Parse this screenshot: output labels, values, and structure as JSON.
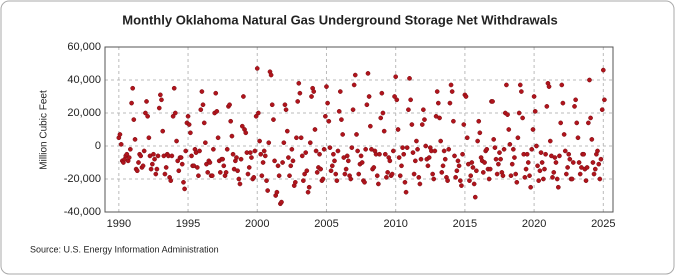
{
  "chart_data": {
    "type": "scatter",
    "title": "Monthly Oklahoma Natural Gas Underground Storage Net Withdrawals",
    "y_label": "Million Cubic Feet",
    "source": "Source: U.S. Energy Information Administration",
    "color": "#b0141c",
    "grid": true,
    "xlim": [
      1989,
      2025.7
    ],
    "xticks": [
      1990,
      1995,
      2000,
      2005,
      2010,
      2015,
      2020,
      2025
    ],
    "ylim": [
      -40000,
      60000
    ],
    "yticks": [
      {
        "value": -40000,
        "label": "-40,000"
      },
      {
        "value": -20000,
        "label": "-20,000"
      },
      {
        "value": 0,
        "label": "0"
      },
      {
        "value": 20000,
        "label": "20,000"
      },
      {
        "value": 40000,
        "label": "40,000"
      },
      {
        "value": 60000,
        "label": "60,000"
      }
    ],
    "x": [
      1990,
      1990.08,
      1990.17,
      1990.25,
      1990.33,
      1990.42,
      1990.5,
      1990.58,
      1990.67,
      1990.75,
      1990.83,
      1990.92,
      1991,
      1991.08,
      1991.17,
      1991.25,
      1991.33,
      1991.42,
      1991.5,
      1991.58,
      1991.67,
      1991.75,
      1991.83,
      1991.92,
      1992,
      1992.08,
      1992.17,
      1992.25,
      1992.33,
      1992.42,
      1992.5,
      1992.58,
      1992.67,
      1992.75,
      1992.83,
      1992.92,
      1993,
      1993.08,
      1993.17,
      1993.25,
      1993.33,
      1993.42,
      1993.5,
      1993.58,
      1993.67,
      1993.75,
      1993.83,
      1993.92,
      1994,
      1994.08,
      1994.17,
      1994.25,
      1994.33,
      1994.42,
      1994.5,
      1994.58,
      1994.67,
      1994.75,
      1994.83,
      1994.92,
      1995,
      1995.08,
      1995.17,
      1995.25,
      1995.33,
      1995.42,
      1995.5,
      1995.58,
      1995.67,
      1995.75,
      1995.83,
      1995.92,
      1996,
      1996.08,
      1996.17,
      1996.25,
      1996.33,
      1996.42,
      1996.5,
      1996.58,
      1996.67,
      1996.75,
      1996.83,
      1996.92,
      1997,
      1997.08,
      1997.17,
      1997.25,
      1997.33,
      1997.42,
      1997.5,
      1997.58,
      1997.67,
      1997.75,
      1997.83,
      1997.92,
      1998,
      1998.08,
      1998.17,
      1998.25,
      1998.33,
      1998.42,
      1998.5,
      1998.58,
      1998.67,
      1998.75,
      1998.83,
      1998.92,
      1999,
      1999.08,
      1999.17,
      1999.25,
      1999.33,
      1999.42,
      1999.5,
      1999.58,
      1999.67,
      1999.75,
      1999.83,
      1999.92,
      2000,
      2000.08,
      2000.17,
      2000.25,
      2000.33,
      2000.42,
      2000.5,
      2000.58,
      2000.67,
      2000.75,
      2000.83,
      2000.92,
      2001,
      2001.08,
      2001.17,
      2001.25,
      2001.33,
      2001.42,
      2001.5,
      2001.58,
      2001.67,
      2001.75,
      2001.83,
      2001.92,
      2002,
      2002.08,
      2002.17,
      2002.25,
      2002.33,
      2002.42,
      2002.5,
      2002.58,
      2002.67,
      2002.75,
      2002.83,
      2002.92,
      2003,
      2003.08,
      2003.17,
      2003.25,
      2003.33,
      2003.42,
      2003.5,
      2003.58,
      2003.67,
      2003.75,
      2003.83,
      2003.92,
      2004,
      2004.08,
      2004.17,
      2004.25,
      2004.33,
      2004.42,
      2004.5,
      2004.58,
      2004.67,
      2004.75,
      2004.83,
      2004.92,
      2005,
      2005.08,
      2005.17,
      2005.25,
      2005.33,
      2005.42,
      2005.5,
      2005.58,
      2005.67,
      2005.75,
      2005.83,
      2005.92,
      2006,
      2006.08,
      2006.17,
      2006.25,
      2006.33,
      2006.42,
      2006.5,
      2006.58,
      2006.67,
      2006.75,
      2006.83,
      2006.92,
      2007,
      2007.08,
      2007.17,
      2007.25,
      2007.33,
      2007.42,
      2007.5,
      2007.58,
      2007.67,
      2007.75,
      2007.83,
      2007.92,
      2008,
      2008.08,
      2008.17,
      2008.25,
      2008.33,
      2008.42,
      2008.5,
      2008.58,
      2008.67,
      2008.75,
      2008.83,
      2008.92,
      2009,
      2009.08,
      2009.17,
      2009.25,
      2009.33,
      2009.42,
      2009.5,
      2009.58,
      2009.67,
      2009.75,
      2009.83,
      2009.92,
      2010,
      2010.08,
      2010.17,
      2010.25,
      2010.33,
      2010.42,
      2010.5,
      2010.58,
      2010.67,
      2010.75,
      2010.83,
      2010.92,
      2011,
      2011.08,
      2011.17,
      2011.25,
      2011.33,
      2011.42,
      2011.5,
      2011.58,
      2011.67,
      2011.75,
      2011.83,
      2011.92,
      2012,
      2012.08,
      2012.17,
      2012.25,
      2012.33,
      2012.42,
      2012.5,
      2012.58,
      2012.67,
      2012.75,
      2012.83,
      2012.92,
      2013,
      2013.08,
      2013.17,
      2013.25,
      2013.33,
      2013.42,
      2013.5,
      2013.58,
      2013.67,
      2013.75,
      2013.83,
      2013.92,
      2014,
      2014.08,
      2014.17,
      2014.25,
      2014.33,
      2014.42,
      2014.5,
      2014.58,
      2014.67,
      2014.75,
      2014.83,
      2014.92,
      2015,
      2015.08,
      2015.17,
      2015.25,
      2015.33,
      2015.42,
      2015.5,
      2015.58,
      2015.67,
      2015.75,
      2015.83,
      2015.92,
      2016,
      2016.08,
      2016.17,
      2016.25,
      2016.33,
      2016.42,
      2016.5,
      2016.58,
      2016.67,
      2016.75,
      2016.83,
      2016.92,
      2017,
      2017.08,
      2017.17,
      2017.25,
      2017.33,
      2017.42,
      2017.5,
      2017.58,
      2017.67,
      2017.75,
      2017.83,
      2017.92,
      2018,
      2018.08,
      2018.17,
      2018.25,
      2018.33,
      2018.42,
      2018.5,
      2018.58,
      2018.67,
      2018.75,
      2018.83,
      2018.92,
      2019,
      2019.08,
      2019.17,
      2019.25,
      2019.33,
      2019.42,
      2019.5,
      2019.58,
      2019.67,
      2019.75,
      2019.83,
      2019.92,
      2020,
      2020.08,
      2020.17,
      2020.25,
      2020.33,
      2020.42,
      2020.5,
      2020.58,
      2020.67,
      2020.75,
      2020.83,
      2020.92,
      2021,
      2021.08,
      2021.17,
      2021.25,
      2021.33,
      2021.42,
      2021.5,
      2021.58,
      2021.67,
      2021.75,
      2021.83,
      2021.92,
      2022,
      2022.08,
      2022.17,
      2022.25,
      2022.33,
      2022.42,
      2022.5,
      2022.58,
      2022.67,
      2022.75,
      2022.83,
      2022.92,
      2023,
      2023.08,
      2023.17,
      2023.25,
      2023.33,
      2023.42,
      2023.5,
      2023.58,
      2023.67,
      2023.75,
      2023.83,
      2023.92,
      2024,
      2024.08,
      2024.17,
      2024.25,
      2024.33,
      2024.42,
      2024.5,
      2024.58,
      2024.67,
      2024.75,
      2024.83,
      2024.92,
      2025,
      2025.08
    ],
    "values": [
      5000,
      7000,
      1000,
      -9000,
      -10000,
      -8000,
      -6000,
      -5000,
      -9000,
      -7000,
      -2000,
      26000,
      35000,
      16000,
      4000,
      -14000,
      -15000,
      -10000,
      -5000,
      -6000,
      -13000,
      -12000,
      -3000,
      20000,
      27000,
      18000,
      5000,
      -6000,
      -14000,
      -11000,
      -5000,
      -8000,
      -17000,
      -14000,
      -6000,
      23000,
      31000,
      28000,
      9000,
      -6000,
      -17000,
      -13000,
      -5000,
      -6000,
      -19000,
      -21000,
      -6000,
      18000,
      35000,
      20000,
      3000,
      -9000,
      -15000,
      -7000,
      -7000,
      -11000,
      -22000,
      -26000,
      -3000,
      14000,
      18000,
      13000,
      8000,
      -6000,
      -12000,
      -12000,
      -2000,
      -4000,
      -13000,
      -18000,
      -3000,
      22000,
      33000,
      25000,
      14000,
      2000,
      -11000,
      -16000,
      -9000,
      -10000,
      -18000,
      -18000,
      -2000,
      20000,
      32000,
      21000,
      5000,
      -9000,
      -16000,
      -8000,
      -8000,
      -12000,
      -18000,
      -16000,
      -2000,
      24000,
      25000,
      15000,
      6000,
      -5000,
      -14000,
      -9000,
      -7000,
      -15000,
      -20000,
      -23000,
      -8000,
      12000,
      30000,
      10000,
      8000,
      -4000,
      -17000,
      -13000,
      -4000,
      -7000,
      -20000,
      -19000,
      -3000,
      18000,
      47000,
      20000,
      3000,
      -5000,
      -18000,
      -10000,
      -3000,
      -6000,
      -21000,
      -27000,
      2000,
      45000,
      43000,
      25000,
      16000,
      -9000,
      -30000,
      -28000,
      -12000,
      -18000,
      -35000,
      -34000,
      -10000,
      2000,
      25000,
      22000,
      9000,
      -7000,
      -18000,
      -12000,
      -2000,
      -9000,
      -24000,
      -22000,
      5000,
      27000,
      38000,
      32000,
      5000,
      -6000,
      -21000,
      -17000,
      -4000,
      -15000,
      -28000,
      -25000,
      2000,
      30000,
      35000,
      33000,
      10000,
      -3000,
      -16000,
      -13000,
      -5000,
      -14000,
      -21000,
      -20000,
      -2000,
      18000,
      36000,
      26000,
      15000,
      -1000,
      -15000,
      -12000,
      -5000,
      -9000,
      -17000,
      -21000,
      -3000,
      21000,
      33000,
      16000,
      7000,
      -7000,
      -17000,
      -14000,
      -6000,
      -9000,
      -18000,
      -20000,
      -1000,
      22000,
      37000,
      43000,
      7000,
      -3000,
      -17000,
      -11000,
      -6000,
      -10000,
      -21000,
      -22000,
      -2000,
      25000,
      44000,
      30000,
      12000,
      -2000,
      -14000,
      -13000,
      -3000,
      -5000,
      -18000,
      -23000,
      -5000,
      17000,
      32000,
      20000,
      9000,
      -5000,
      -19000,
      -16000,
      -7000,
      -9000,
      -18000,
      -17000,
      -3000,
      30000,
      42000,
      28000,
      10000,
      -7000,
      -18000,
      -12000,
      -1000,
      -5000,
      -22000,
      -28000,
      -1000,
      22000,
      41000,
      28000,
      13000,
      -4000,
      -17000,
      -9000,
      3000,
      -2000,
      -19000,
      -23000,
      -8000,
      13000,
      22000,
      16000,
      0,
      -8000,
      -12000,
      -7000,
      -1000,
      -3000,
      -17000,
      -20000,
      -3000,
      18000,
      33000,
      26000,
      17000,
      3000,
      -16000,
      -12000,
      -3000,
      -8000,
      -19000,
      -21000,
      -2000,
      26000,
      37000,
      33000,
      15000,
      -6000,
      -19000,
      -15000,
      -9000,
      -12000,
      -21000,
      -24000,
      -5000,
      13000,
      31000,
      30000,
      5000,
      -11000,
      -21000,
      -18000,
      -10000,
      -13000,
      -23000,
      -31000,
      -15000,
      3000,
      15000,
      8000,
      -7000,
      -9000,
      -16000,
      -10000,
      -3000,
      -2000,
      -14000,
      -20000,
      -14000,
      27000,
      27000,
      4000,
      -1000,
      -8000,
      -17000,
      -11000,
      -4000,
      -8000,
      -16000,
      -18000,
      -2000,
      20000,
      37000,
      19000,
      10000,
      1000,
      -18000,
      -11000,
      -2000,
      -7000,
      -17000,
      -22000,
      5000,
      20000,
      37000,
      33000,
      17000,
      -5000,
      -19000,
      -14000,
      -5000,
      -10000,
      -18000,
      -25000,
      -2000,
      10000,
      30000,
      21000,
      0,
      -12000,
      -21000,
      -15000,
      -4000,
      -10000,
      -20000,
      -14000,
      -5000,
      24000,
      38000,
      36000,
      3000,
      -6000,
      -19000,
      -16000,
      -7000,
      -10000,
      -20000,
      -25000,
      -6000,
      14000,
      37000,
      26000,
      7000,
      -3000,
      -17000,
      -13000,
      -5000,
      -8000,
      -20000,
      -20000,
      -10000,
      24000,
      28000,
      14000,
      5000,
      -10000,
      -17000,
      -13000,
      -5000,
      -5000,
      -14000,
      -21000,
      -13000,
      14000,
      40000,
      17000,
      4000,
      -10000,
      -17000,
      -14000,
      -5000,
      -3000,
      -11000,
      -20000,
      -8000,
      22000,
      46000,
      28000
    ]
  }
}
